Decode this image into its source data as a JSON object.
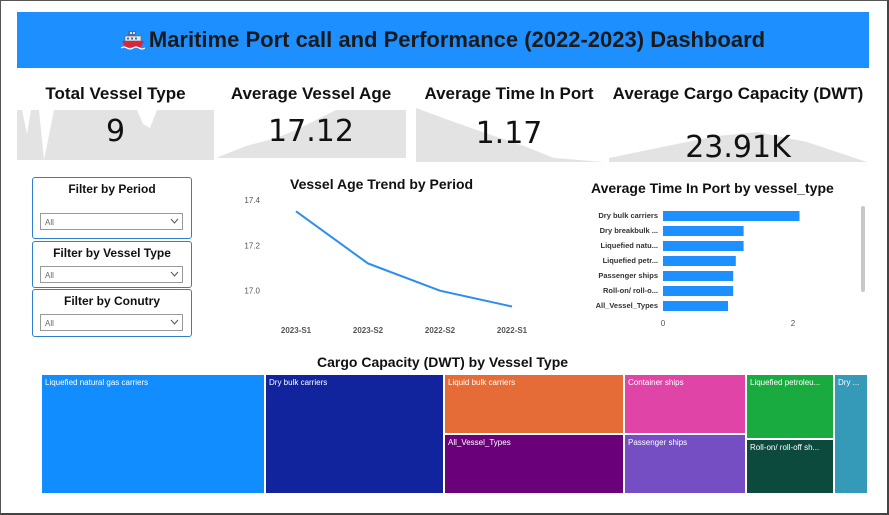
{
  "header": {
    "title": "Maritime Port call and Performance (2022-2023) Dashboard",
    "icon": "ship-icon"
  },
  "kpis": [
    {
      "title": "Total Vessel Type",
      "value": "9"
    },
    {
      "title": "Average Vessel Age",
      "value": "17.12"
    },
    {
      "title": "Average Time In Port",
      "value": "1.17"
    },
    {
      "title": "Average Cargo Capacity (DWT)",
      "value": "23.91K"
    }
  ],
  "slicers": [
    {
      "title": "Filter by Period",
      "value": "All"
    },
    {
      "title": "Filter by Vessel Type",
      "value": "All"
    },
    {
      "title": "Filter by Conutry",
      "value": "All"
    }
  ],
  "line_chart": {
    "title": "Vessel Age Trend by Period"
  },
  "bar_chart": {
    "title": "Average Time In Port by vessel_type"
  },
  "treemap": {
    "title": "Cargo Capacity (DWT) by Vessel Type"
  },
  "colors": {
    "accent": "#1e8fff",
    "line": "#2b8ef0",
    "bar": "#1e8fff"
  },
  "chart_data": [
    {
      "type": "line",
      "title": "Vessel Age Trend by Period",
      "x": [
        "2023-S1",
        "2023-S2",
        "2022-S2",
        "2022-S1"
      ],
      "y": [
        17.35,
        17.12,
        17.0,
        16.93
      ],
      "ylim": [
        16.95,
        17.4
      ],
      "yticks": [
        "17.4",
        "17.2",
        "17.0"
      ],
      "grid": false
    },
    {
      "type": "bar",
      "orientation": "horizontal",
      "title": "Average Time In Port by vessel_type",
      "categories": [
        "Dry bulk carriers",
        "Dry breakbulk ...",
        "Liquefied natu...",
        "Liquefied petr...",
        "Passenger ships",
        "Roll-on/ roll-o...",
        "All_Vessel_Types"
      ],
      "values": [
        2.1,
        1.24,
        1.24,
        1.12,
        1.08,
        1.08,
        1.0
      ],
      "xticks": [
        "0",
        "2"
      ],
      "xlim": [
        0,
        3
      ]
    },
    {
      "type": "treemap",
      "title": "Cargo Capacity (DWT) by Vessel Type",
      "items": [
        {
          "label": "Liquefied natural gas carriers",
          "color": "#118dff"
        },
        {
          "label": "Dry bulk carriers",
          "color": "#12239e"
        },
        {
          "label": "Liquid bulk carriers",
          "color": "#e66c37"
        },
        {
          "label": "All_Vessel_Types",
          "color": "#6b007b"
        },
        {
          "label": "Container ships",
          "color": "#e044a7"
        },
        {
          "label": "Passenger ships",
          "color": "#744ec2"
        },
        {
          "label": "Liquefied petroleu...",
          "color": "#1aab40"
        },
        {
          "label": "Roll-on/ roll-off sh...",
          "color": "#0d4a3e"
        },
        {
          "label": "Dry ...",
          "color": "#3599b8"
        }
      ]
    }
  ]
}
